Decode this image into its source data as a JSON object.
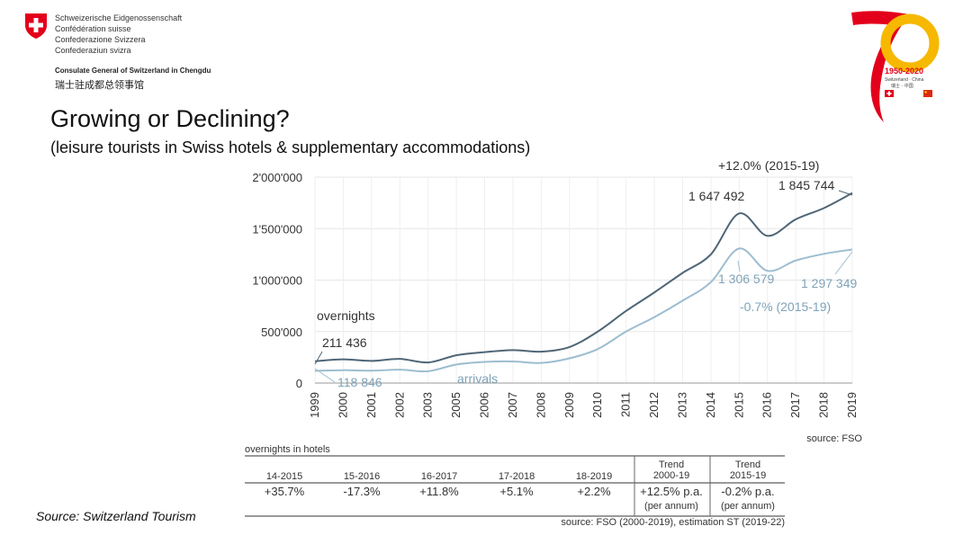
{
  "header": {
    "lines": [
      "Schweizerische Eidgenossenschaft",
      "Confédération suisse",
      "Confederazione Svizzera",
      "Confederaziun svizra"
    ],
    "consulate_en": "Consulate General of Switzerland in Chengdu",
    "consulate_zh": "瑞士驻成都总领事馆"
  },
  "anniversary_logo": {
    "years": "1950-2020",
    "line2": "Switzerland · China",
    "line3": "瑞士 · 中国"
  },
  "title": "Growing or Declining?",
  "subtitle": "(leisure tourists in Swiss hotels & supplementary accommodations)",
  "source_left": "Source: Switzerland Tourism",
  "colors": {
    "overnights": "#4f6677",
    "arrivals": "#9dbdd0",
    "swiss_red": "#e3001b"
  },
  "chart_data": {
    "type": "line",
    "x": [
      "1999",
      "2000",
      "2001",
      "2002",
      "2003",
      "2005",
      "2006",
      "2007",
      "2008",
      "2009",
      "2010",
      "2011",
      "2012",
      "2013",
      "2014",
      "2015",
      "2016",
      "2017",
      "2018",
      "2019"
    ],
    "ylim": [
      0,
      2000000
    ],
    "yticks": [
      0,
      500000,
      1000000,
      1500000,
      2000000
    ],
    "ytick_labels": [
      "0",
      "500'000",
      "1'000'000",
      "1'500'000",
      "2'000'000"
    ],
    "series": [
      {
        "name": "overnights",
        "values": [
          211436,
          230000,
          215000,
          235000,
          200000,
          270000,
          300000,
          320000,
          305000,
          350000,
          500000,
          700000,
          880000,
          1070000,
          1250000,
          1647492,
          1430000,
          1590000,
          1700000,
          1845744
        ]
      },
      {
        "name": "arrivals",
        "values": [
          118846,
          125000,
          120000,
          130000,
          115000,
          180000,
          205000,
          210000,
          195000,
          240000,
          330000,
          500000,
          640000,
          800000,
          980000,
          1306579,
          1090000,
          1190000,
          1255000,
          1297349
        ]
      }
    ],
    "annotations": [
      {
        "text": "211 436"
      },
      {
        "text": "118 846"
      },
      {
        "text": "1 647 492"
      },
      {
        "text": "1 845 744"
      },
      {
        "text": "+12.0% (2015-19)"
      },
      {
        "text": "1 306 579"
      },
      {
        "text": "1 297 349"
      },
      {
        "text": "-0.7% (2015-19)"
      }
    ],
    "source": "source: FSO"
  },
  "table": {
    "title": "overnights in hotels",
    "columns": [
      {
        "header_lines": [
          "14-2015"
        ],
        "value_lines": [
          "+35.7%"
        ]
      },
      {
        "header_lines": [
          "15-2016"
        ],
        "value_lines": [
          "-17.3%"
        ]
      },
      {
        "header_lines": [
          "16-2017"
        ],
        "value_lines": [
          "+11.8%"
        ]
      },
      {
        "header_lines": [
          "17-2018"
        ],
        "value_lines": [
          "+5.1%"
        ]
      },
      {
        "header_lines": [
          "18-2019"
        ],
        "value_lines": [
          "+2.2%"
        ]
      },
      {
        "header_lines": [
          "Trend",
          "2000-19"
        ],
        "value_lines": [
          "+12.5% p.a.",
          "(per annum)"
        ]
      },
      {
        "header_lines": [
          "Trend",
          "2015-19"
        ],
        "value_lines": [
          "-0.2% p.a.",
          "(per annum)"
        ]
      }
    ],
    "source": "source: FSO (2000-2019), estimation ST (2019-22)"
  }
}
